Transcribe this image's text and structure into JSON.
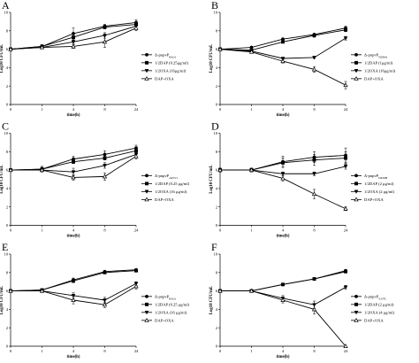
{
  "chart_data": [
    {
      "panel": "A",
      "type": "line",
      "x": [
        0,
        1,
        4,
        8,
        24
      ],
      "xticks": [
        "0",
        "1",
        "4",
        "8",
        "24"
      ],
      "xlabel": "time(h)",
      "ylabel": "Log10 CFU/mL",
      "ylim": [
        0,
        10
      ],
      "yticks": [
        0,
        2,
        4,
        6,
        8,
        10
      ],
      "legend": "right",
      "series": [
        {
          "name": "Δ-pnpvP",
          "sub": "BA21",
          "marker": "circle-filled",
          "values": [
            6.0,
            6.3,
            7.7,
            8.5,
            8.9
          ],
          "errors": [
            0.1,
            0.1,
            0.6,
            0.2,
            0.3
          ]
        },
        {
          "name": "1/2DAP (0.25μg/ml)",
          "sub": "",
          "marker": "square-filled",
          "values": [
            6.0,
            6.3,
            7.3,
            8.4,
            8.7
          ],
          "errors": [
            0.1,
            0.2,
            0.3,
            0.2,
            0.2
          ]
        },
        {
          "name": "1/2OXA (16μg/ml)",
          "sub": "",
          "marker": "triangle-down-filled",
          "values": [
            6.0,
            6.2,
            6.8,
            7.5,
            8.5
          ],
          "errors": [
            0.1,
            0.1,
            0.2,
            0.3,
            0.2
          ]
        },
        {
          "name": "DAP+OXA",
          "sub": "",
          "marker": "triangle-up-open",
          "values": [
            6.0,
            6.2,
            6.3,
            6.8,
            8.3
          ],
          "errors": [
            0.1,
            0.1,
            0.2,
            0.6,
            0.3
          ]
        }
      ]
    },
    {
      "panel": "B",
      "type": "line",
      "x": [
        0,
        1,
        4,
        8,
        24
      ],
      "xticks": [
        "0",
        "1",
        "4",
        "8",
        "24"
      ],
      "xlabel": "time(h)",
      "ylabel": "Log10 CFU/mL",
      "ylim": [
        0,
        10
      ],
      "yticks": [
        0,
        2,
        4,
        6,
        8,
        10
      ],
      "legend": "right",
      "series": [
        {
          "name": "Δ-pnpvP",
          "sub": "N296A",
          "marker": "circle-filled",
          "values": [
            6.0,
            6.2,
            7.1,
            7.6,
            8.3
          ],
          "errors": [
            0.1,
            0.1,
            0.1,
            0.1,
            0.2
          ]
        },
        {
          "name": "1/2DAP (1μg/ml)",
          "sub": "",
          "marker": "square-filled",
          "values": [
            6.0,
            5.9,
            6.8,
            7.5,
            8.1
          ],
          "errors": [
            0.1,
            0.1,
            0.1,
            0.2,
            0.2
          ]
        },
        {
          "name": "1/2OXA (16μg/ml)",
          "sub": "",
          "marker": "triangle-down-filled",
          "values": [
            6.0,
            5.8,
            5.0,
            5.1,
            7.2
          ],
          "errors": [
            0.1,
            0.1,
            0.1,
            0.1,
            0.2
          ]
        },
        {
          "name": "DAP+OXA",
          "sub": "",
          "marker": "triangle-up-open",
          "values": [
            6.0,
            5.7,
            4.7,
            3.8,
            2.1
          ],
          "errors": [
            0.1,
            0.1,
            0.2,
            0.3,
            0.4
          ]
        }
      ]
    },
    {
      "panel": "C",
      "type": "line",
      "x": [
        0,
        1,
        4,
        8,
        24
      ],
      "xticks": [
        "0",
        "1",
        "4",
        "8",
        "24"
      ],
      "xlabel": "time(h)",
      "ylabel": "Log10 CFU/mL",
      "ylim": [
        0,
        10
      ],
      "yticks": [
        0,
        2,
        4,
        6,
        8,
        10
      ],
      "legend": "right",
      "series": [
        {
          "name": "Δ-pnpvP",
          "sub": "A45V1",
          "marker": "circle-filled",
          "values": [
            6.0,
            6.1,
            7.2,
            7.7,
            8.4
          ],
          "errors": [
            0.1,
            0.3,
            0.3,
            0.4,
            0.3
          ]
        },
        {
          "name": "1/2DAP (0.25 μg/ml)",
          "sub": "",
          "marker": "square-filled",
          "values": [
            6.0,
            6.1,
            6.9,
            7.3,
            8.1
          ],
          "errors": [
            0.1,
            0.2,
            0.2,
            0.2,
            0.2
          ]
        },
        {
          "name": "1/2OXA (16 μg/ml)",
          "sub": "",
          "marker": "triangle-down-filled",
          "values": [
            6.0,
            6.0,
            5.8,
            6.5,
            7.7
          ],
          "errors": [
            0.1,
            0.2,
            0.4,
            0.3,
            0.2
          ]
        },
        {
          "name": "DAP+OXA",
          "sub": "",
          "marker": "triangle-up-open",
          "values": [
            6.0,
            6.0,
            5.2,
            5.3,
            7.5
          ],
          "errors": [
            0.1,
            0.2,
            0.3,
            0.4,
            0.3
          ]
        }
      ]
    },
    {
      "panel": "D",
      "type": "line",
      "x": [
        0,
        1,
        4,
        8,
        24
      ],
      "xticks": [
        "0",
        "1",
        "4",
        "8",
        "24"
      ],
      "xlabel": "time(h)",
      "ylabel": "Log10 CFU/mL",
      "ylim": [
        0,
        10
      ],
      "yticks": [
        0,
        2,
        4,
        6,
        8,
        10
      ],
      "legend": "right",
      "series": [
        {
          "name": "Δ-pnpvP",
          "sub": "D456H",
          "marker": "circle-filled",
          "values": [
            6.0,
            6.0,
            6.9,
            7.4,
            7.6
          ],
          "errors": [
            0.2,
            0.2,
            0.6,
            0.6,
            0.8
          ]
        },
        {
          "name": "1/2DAP (2 μg/ml)",
          "sub": "",
          "marker": "square-filled",
          "values": [
            6.0,
            6.0,
            6.8,
            7.1,
            7.3
          ],
          "errors": [
            0.2,
            0.2,
            0.5,
            0.6,
            0.7
          ]
        },
        {
          "name": "1/2OXA (2 μg/ml)",
          "sub": "",
          "marker": "triangle-down-filled",
          "values": [
            6.0,
            6.0,
            5.6,
            5.6,
            6.4
          ],
          "errors": [
            0.2,
            0.2,
            0.2,
            0.2,
            0.3
          ]
        },
        {
          "name": "DAP+OXA",
          "sub": "",
          "marker": "triangle-up-open",
          "values": [
            6.0,
            6.0,
            5.1,
            3.4,
            1.8
          ],
          "errors": [
            0.2,
            0.2,
            0.3,
            0.5,
            0.2
          ]
        }
      ]
    },
    {
      "panel": "E",
      "type": "line",
      "x": [
        0,
        1,
        4,
        8,
        24
      ],
      "xticks": [
        "0",
        "1",
        "4",
        "8",
        "24"
      ],
      "xlabel": "time(h)",
      "ylabel": "Log10 CFU/mL",
      "ylim": [
        0,
        10
      ],
      "yticks": [
        0,
        2,
        4,
        6,
        8,
        10
      ],
      "legend": "right",
      "series": [
        {
          "name": "Δ-pnpvP",
          "sub": "BA21",
          "marker": "circle-filled",
          "values": [
            6.0,
            6.1,
            7.2,
            8.1,
            8.3
          ],
          "errors": [
            0.1,
            0.1,
            0.2,
            0.1,
            0.1
          ]
        },
        {
          "name": "1/2DAP (0.25 μg/ml)",
          "sub": "",
          "marker": "square-filled",
          "values": [
            6.0,
            6.1,
            7.1,
            8.0,
            8.2
          ],
          "errors": [
            0.1,
            0.1,
            0.2,
            0.1,
            0.1
          ]
        },
        {
          "name": "1/2OXA (16 μg/ml)",
          "sub": "",
          "marker": "triangle-down-filled",
          "values": [
            6.0,
            6.0,
            5.5,
            5.0,
            6.8
          ],
          "errors": [
            0.1,
            0.1,
            0.3,
            0.3,
            0.2
          ]
        },
        {
          "name": "DAP+OXA",
          "sub": "",
          "marker": "triangle-up-open",
          "values": [
            6.0,
            6.0,
            5.0,
            4.5,
            6.5
          ],
          "errors": [
            0.1,
            0.1,
            0.4,
            0.3,
            0.3
          ]
        }
      ]
    },
    {
      "panel": "F",
      "type": "line",
      "x": [
        0,
        1,
        4,
        8,
        24
      ],
      "xticks": [
        "0",
        "1",
        "4",
        "8",
        "24"
      ],
      "xlabel": "time(h)",
      "ylabel": "Log10 CFU/mL",
      "ylim": [
        0,
        10
      ],
      "yticks": [
        0,
        2,
        4,
        6,
        8,
        10
      ],
      "legend": "right",
      "series": [
        {
          "name": "Δ-pnpvP",
          "sub": "S337L",
          "marker": "circle-filled",
          "values": [
            6.0,
            6.0,
            6.7,
            7.3,
            8.2
          ],
          "errors": [
            0.1,
            0.1,
            0.1,
            0.1,
            0.1
          ]
        },
        {
          "name": "1/2DAP (2 μg/ml)",
          "sub": "",
          "marker": "square-filled",
          "values": [
            6.0,
            6.0,
            6.7,
            7.3,
            8.1
          ],
          "errors": [
            0.1,
            0.1,
            0.1,
            0.1,
            0.1
          ]
        },
        {
          "name": "1/2OXA (4 μg/ml)",
          "sub": "",
          "marker": "triangle-down-filled",
          "values": [
            6.0,
            6.0,
            5.2,
            4.5,
            6.4
          ],
          "errors": [
            0.1,
            0.1,
            0.3,
            0.4,
            0.2
          ]
        },
        {
          "name": "DAP+OXA",
          "sub": "",
          "marker": "triangle-up-open",
          "values": [
            6.0,
            6.0,
            5.0,
            4.0,
            0.0
          ],
          "errors": [
            0.1,
            0.1,
            0.3,
            0.5,
            0.0
          ]
        }
      ]
    }
  ]
}
